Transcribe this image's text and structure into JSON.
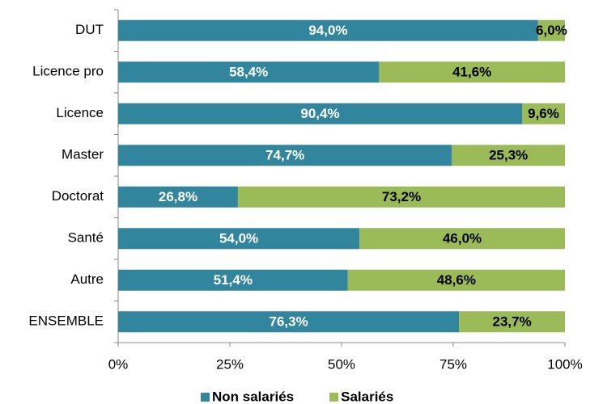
{
  "chart_data": {
    "type": "stacked-barh",
    "categories": [
      "DUT",
      "Licence pro",
      "Licence",
      "Master",
      "Doctorat",
      "Santé",
      "Autre",
      "ENSEMBLE"
    ],
    "series": [
      {
        "name": "Non salariés",
        "color": "#31859c",
        "label_color": "#ffffff",
        "values": [
          94.0,
          58.4,
          90.4,
          74.7,
          26.8,
          54.0,
          51.4,
          76.3
        ],
        "value_labels": [
          "94,0%",
          "58,4%",
          "90,4%",
          "74,7%",
          "26,8%",
          "54,0%",
          "51,4%",
          "76,3%"
        ]
      },
      {
        "name": "Salariés",
        "color": "#9bbb59",
        "label_color": "#000000",
        "values": [
          6.0,
          41.6,
          9.6,
          25.3,
          73.2,
          46.0,
          48.6,
          23.7
        ],
        "value_labels": [
          "6,0%",
          "41,6%",
          "9,6%",
          "25,3%",
          "73,2%",
          "46,0%",
          "48,6%",
          "23,7%"
        ]
      }
    ],
    "xlim": [
      0,
      100
    ],
    "xticks": [
      {
        "value": 0,
        "label": "0%"
      },
      {
        "value": 25,
        "label": "25%"
      },
      {
        "value": 50,
        "label": "50%"
      },
      {
        "value": 75,
        "label": "75%"
      },
      {
        "value": 100,
        "label": "100%"
      }
    ],
    "legend": "bottom"
  }
}
